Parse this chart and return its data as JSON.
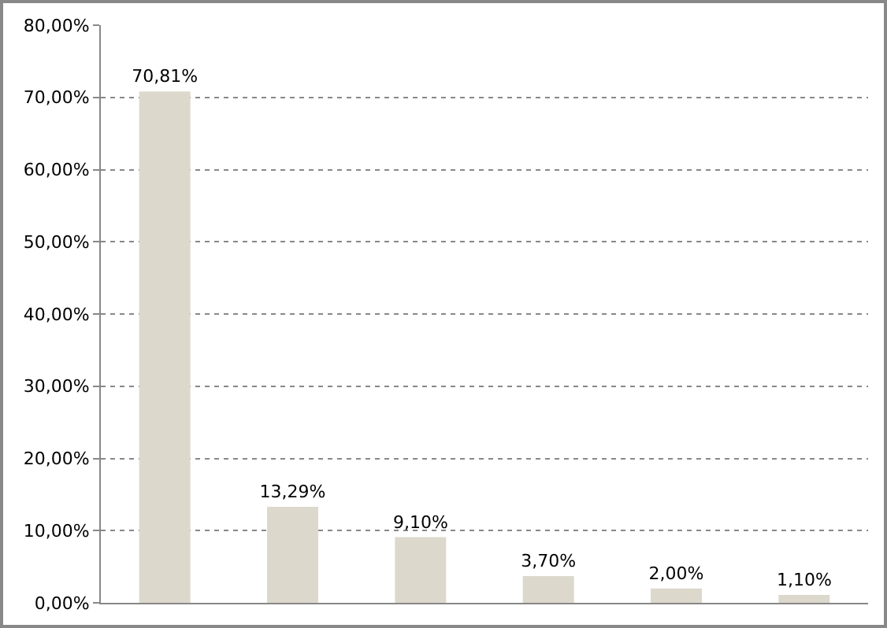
{
  "chart_data": {
    "type": "bar",
    "categories": [
      null,
      null,
      null,
      null,
      null,
      null
    ],
    "values": [
      70.81,
      13.29,
      9.1,
      3.7,
      2.0,
      1.1
    ],
    "color": "#dcd8cc",
    "value_labels": [
      "70,81%",
      "13,29%",
      "9,10%",
      "3,70%",
      "2,00%",
      "1,10%"
    ],
    "ylim": [
      0,
      80
    ],
    "yticks": [
      {
        "value": 0,
        "label": "0,00%"
      },
      {
        "value": 10,
        "label": "10,00%"
      },
      {
        "value": 20,
        "label": "20,00%"
      },
      {
        "value": 30,
        "label": "30,00%"
      },
      {
        "value": 40,
        "label": "40,00%"
      },
      {
        "value": 50,
        "label": "50,00%"
      },
      {
        "value": 60,
        "label": "60,00%"
      },
      {
        "value": 70,
        "label": "70,00%"
      },
      {
        "value": 80,
        "label": "80,00%"
      }
    ],
    "grid": "y",
    "legend": false
  }
}
